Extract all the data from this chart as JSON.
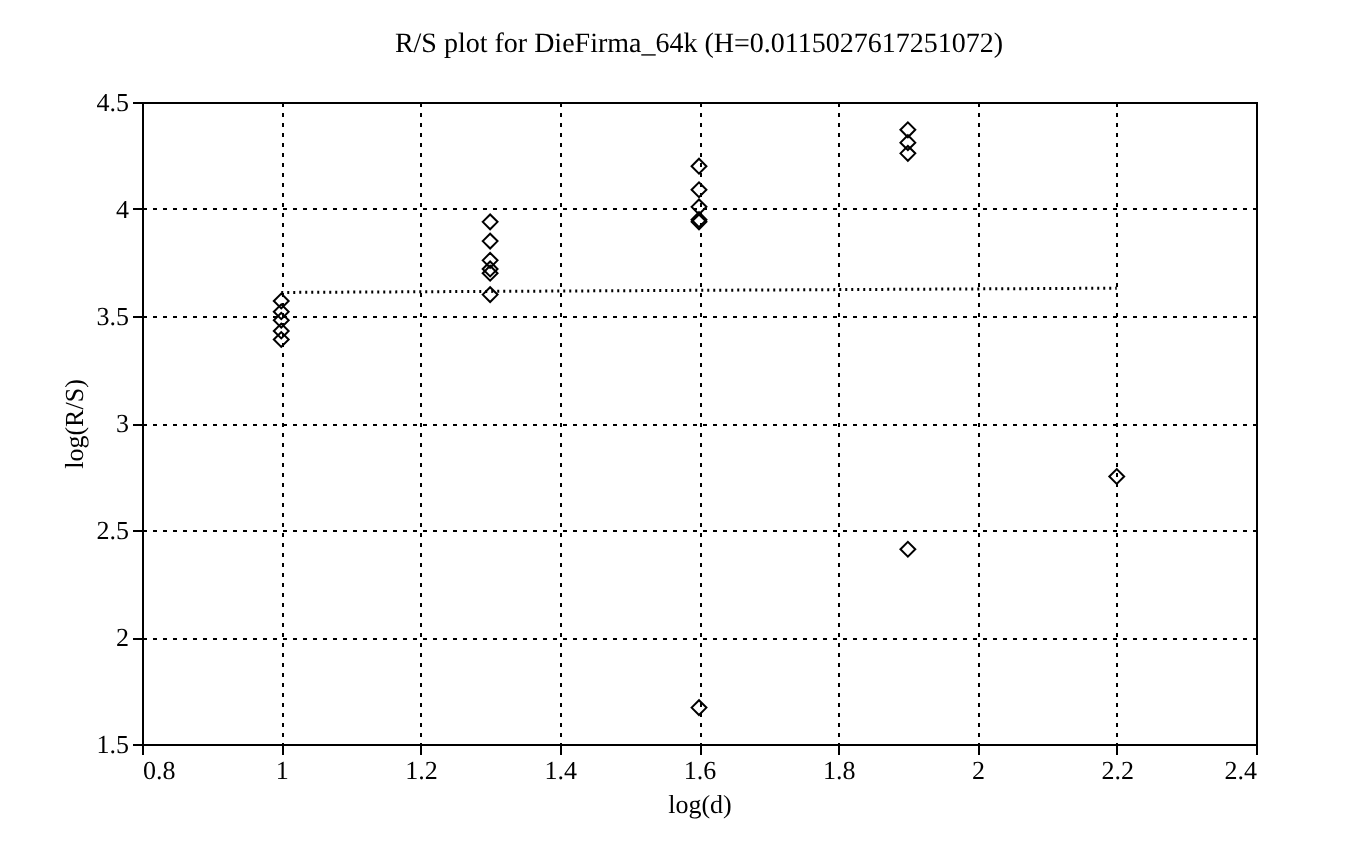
{
  "chart_data": {
    "type": "scatter",
    "title": "R/S plot for DieFirma_64k (H=0.0115027617251072)",
    "xlabel": "log(d)",
    "ylabel": "log(R/S)",
    "xlim": [
      0.8,
      2.4
    ],
    "xticks": [
      0.8,
      1,
      1.2,
      1.4,
      1.6,
      1.8,
      2,
      2.2,
      2.4
    ],
    "ylim": [
      1.5,
      4.5
    ],
    "yticks": [
      1.5,
      2,
      2.5,
      3,
      3.5,
      4,
      4.5
    ],
    "grid": true,
    "series": [
      {
        "marker": "diamond",
        "color": "#000000",
        "x": [
          1,
          1,
          1,
          1,
          1,
          1.3,
          1.3,
          1.3,
          1.3,
          1.3,
          1.3,
          1.6,
          1.6,
          1.6,
          1.6,
          1.6,
          1.6,
          1.9,
          1.9,
          1.9,
          1.9,
          2.2
        ],
        "values": [
          3.57,
          3.52,
          3.48,
          3.43,
          3.39,
          3.94,
          3.85,
          3.76,
          3.72,
          3.7,
          3.6,
          4.2,
          4.09,
          4.01,
          3.95,
          3.94,
          1.67,
          4.37,
          4.31,
          4.26,
          2.41,
          2.75
        ]
      },
      {
        "type": "line",
        "color": "#000000",
        "line_style": "dotted",
        "x": [
          1,
          2.2
        ],
        "values": [
          3.61,
          3.63
        ]
      }
    ]
  }
}
